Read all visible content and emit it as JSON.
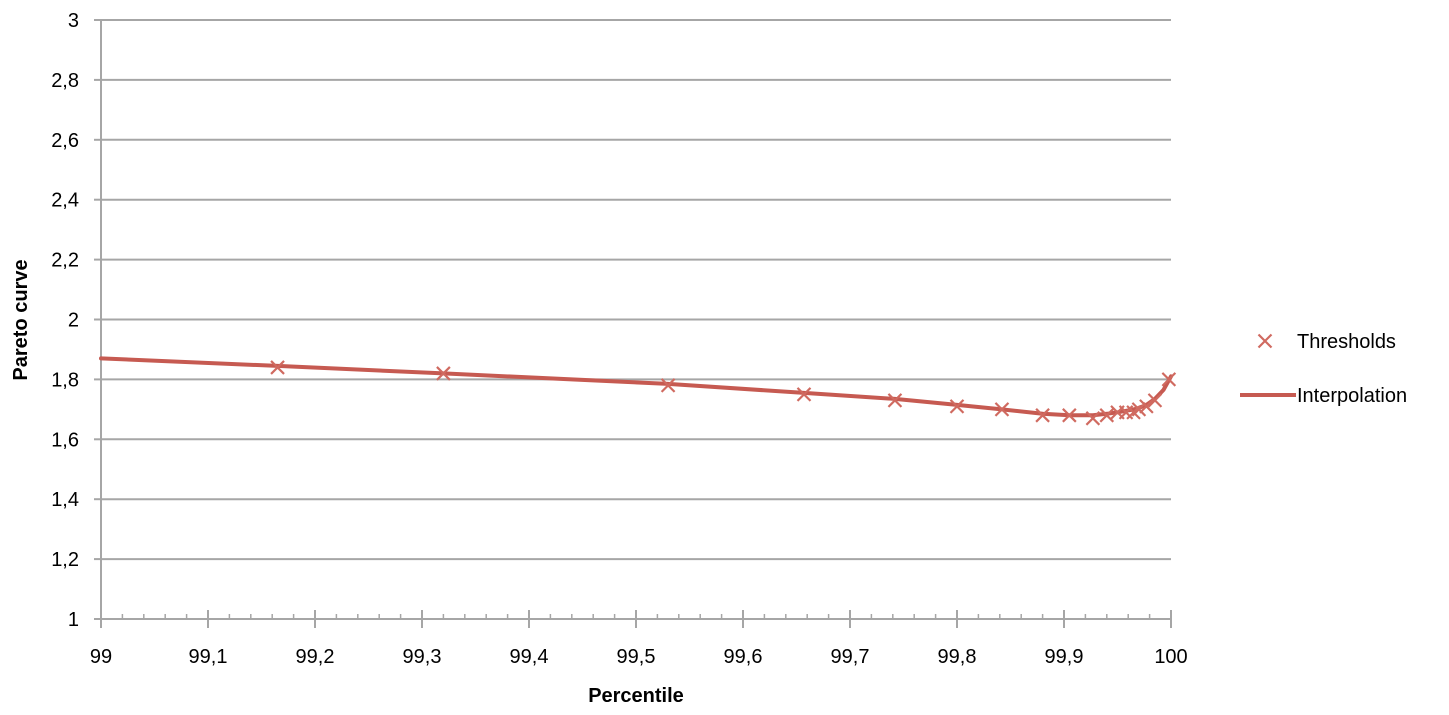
{
  "chart_data": {
    "type": "line",
    "xlabel": "Percentile",
    "ylabel": "Pareto curve",
    "xlim": [
      99,
      100
    ],
    "ylim": [
      1,
      3
    ],
    "x_ticks": [
      99,
      99.1,
      99.2,
      99.3,
      99.4,
      99.5,
      99.6,
      99.7,
      99.8,
      99.9,
      100
    ],
    "x_tick_labels": [
      "99",
      "99,1",
      "99,2",
      "99,3",
      "99,4",
      "99,5",
      "99,6",
      "99,7",
      "99,8",
      "99,9",
      "100"
    ],
    "y_ticks": [
      1,
      1.2,
      1.4,
      1.6,
      1.8,
      2,
      2.2,
      2.4,
      2.6,
      2.8,
      3
    ],
    "y_tick_labels": [
      "1",
      "1,2",
      "1,4",
      "1,6",
      "1,8",
      "2",
      "2,2",
      "2,4",
      "2,6",
      "2,8",
      "3"
    ],
    "grid": "horizontal",
    "legend_position": "right",
    "series": [
      {
        "name": "Thresholds",
        "marker": "x",
        "color": "#d06a60",
        "x": [
          99.165,
          99.32,
          99.53,
          99.657,
          99.742,
          99.8,
          99.842,
          99.88,
          99.905,
          99.927,
          99.94,
          99.95,
          99.958,
          99.965,
          99.97,
          99.977,
          99.985,
          99.998
        ],
        "y": [
          1.84,
          1.82,
          1.78,
          1.75,
          1.73,
          1.71,
          1.7,
          1.68,
          1.68,
          1.67,
          1.68,
          1.69,
          1.69,
          1.69,
          1.7,
          1.71,
          1.73,
          1.8
        ]
      },
      {
        "name": "Interpolation",
        "marker": "none",
        "color": "#c65a51",
        "x": [
          99,
          99.165,
          99.32,
          99.53,
          99.657,
          99.742,
          99.8,
          99.842,
          99.88,
          99.905,
          99.927,
          99.94,
          99.95,
          99.958,
          99.965,
          99.97,
          99.977,
          99.985,
          99.993,
          100
        ],
        "y": [
          1.87,
          1.845,
          1.82,
          1.785,
          1.755,
          1.735,
          1.715,
          1.7,
          1.685,
          1.68,
          1.68,
          1.685,
          1.69,
          1.695,
          1.7,
          1.705,
          1.715,
          1.735,
          1.765,
          1.81
        ]
      }
    ]
  }
}
